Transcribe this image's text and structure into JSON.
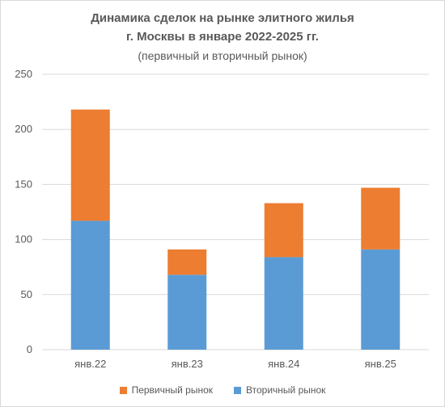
{
  "chart_data": {
    "type": "bar",
    "stacked": true,
    "title_lines": [
      "Динамика сделок на рынке элитного жилья",
      "г. Москвы в январе 2022-2025 гг."
    ],
    "subtitle": "(первичный и вторичный рынок)",
    "categories": [
      "янв.22",
      "янв.23",
      "янв.24",
      "янв.25"
    ],
    "series": [
      {
        "name": "Вторичный рынок",
        "color": "#5b9bd5",
        "values": [
          117,
          68,
          84,
          91
        ]
      },
      {
        "name": "Первичный рынок",
        "color": "#ed7d31",
        "values": [
          101,
          23,
          49,
          56
        ]
      }
    ],
    "legend_order": [
      1,
      0
    ],
    "ylim": [
      0,
      250
    ],
    "yticks": [
      "0",
      "50",
      "100",
      "150",
      "200",
      "250"
    ],
    "grid": true,
    "legend_position": "bottom"
  }
}
